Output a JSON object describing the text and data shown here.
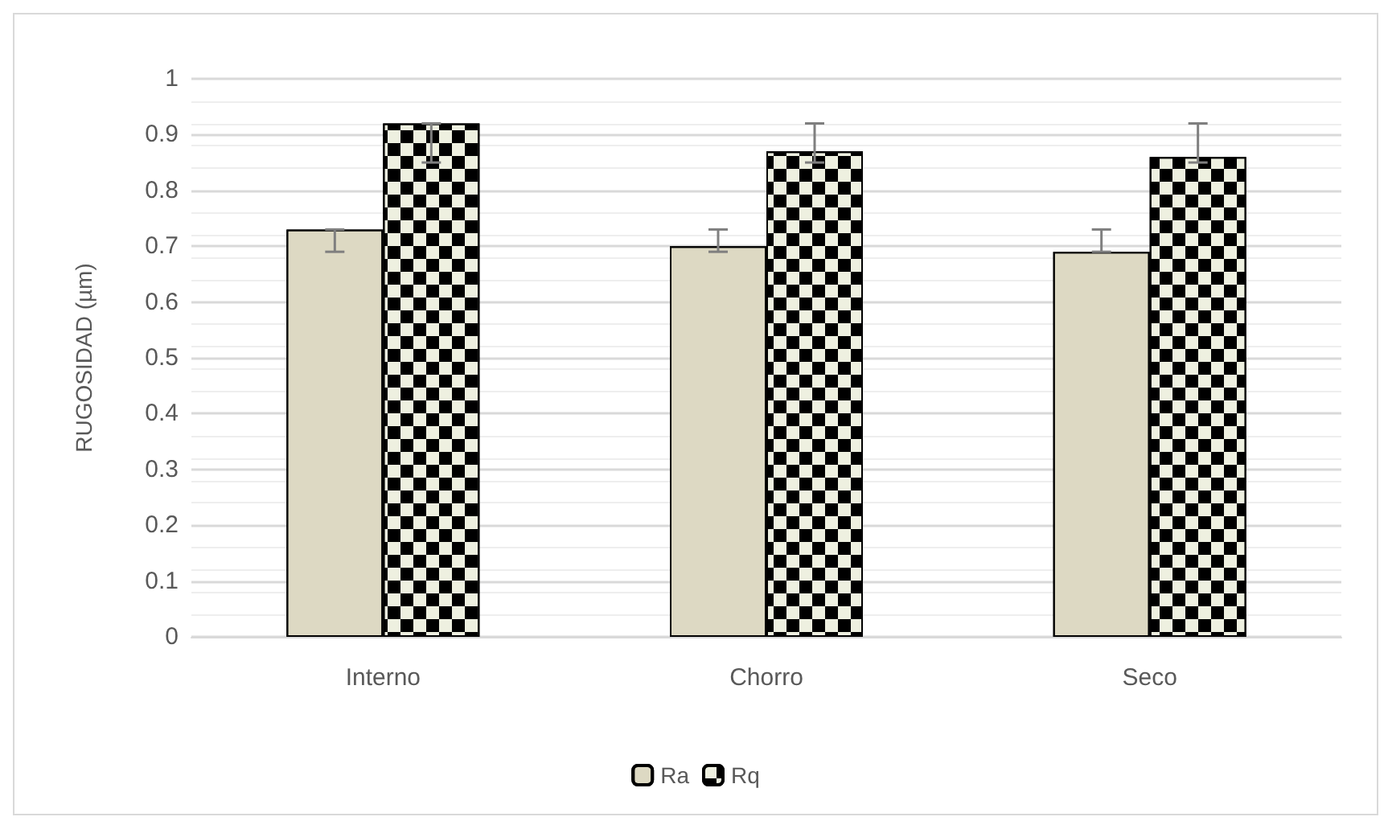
{
  "chart_data": {
    "type": "bar",
    "ylabel": "RUGOSIDAD (µm)",
    "categories": [
      "Interno",
      "Chorro",
      "Seco"
    ],
    "ylim": [
      0,
      1
    ],
    "yticks": [
      0,
      0.1,
      0.2,
      0.3,
      0.4,
      0.5,
      0.6,
      0.7,
      0.8,
      0.9,
      1
    ],
    "grid": "y",
    "legend": "bottom",
    "series": [
      {
        "name": "Ra",
        "color": "#ddd9c3",
        "values": [
          0.73,
          0.7,
          0.69
        ],
        "errors": [
          [
            0.69,
            0.73
          ],
          [
            0.69,
            0.73
          ],
          [
            0.69,
            0.73
          ]
        ]
      },
      {
        "name": "Rq",
        "color": "#eef0e0",
        "values": [
          0.92,
          0.87,
          0.86
        ],
        "errors": [
          [
            0.85,
            0.92
          ],
          [
            0.85,
            0.92
          ],
          [
            0.85,
            0.92
          ]
        ]
      }
    ]
  }
}
